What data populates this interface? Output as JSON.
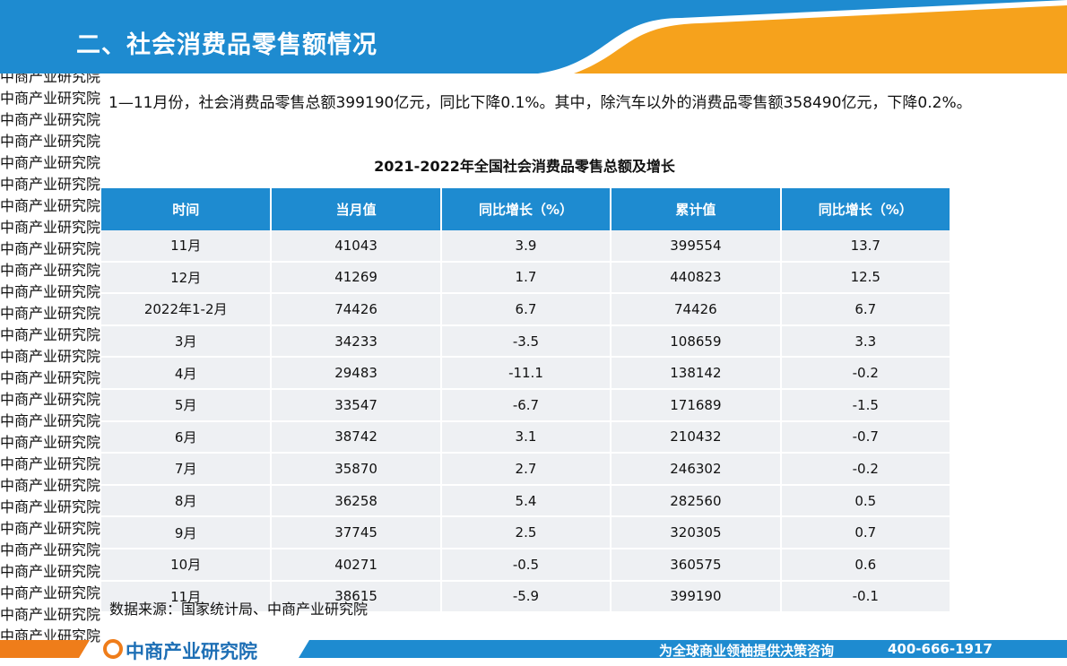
{
  "header": {
    "title": "二、社会消费品零售额情况"
  },
  "paragraph": "1—11月份，社会消费品零售总额399190亿元，同比下降0.1%。其中，除汽车以外的消费品零售额358490亿元，下降0.2%。",
  "table": {
    "title": "2021-2022年全国社会消费品零售总额及增长",
    "header": [
      "时间",
      "当月值",
      "同比增长（%）",
      "累计值",
      "同比增长（%）"
    ],
    "rows": [
      [
        "11月",
        41043,
        3.9,
        399554,
        13.7
      ],
      [
        "12月",
        41269,
        1.7,
        440823,
        12.5
      ],
      [
        "2022年1-2月",
        74426,
        6.7,
        74426,
        6.7
      ],
      [
        "3月",
        34233,
        -3.5,
        108659,
        3.3
      ],
      [
        "4月",
        29483,
        -11.1,
        138142,
        -0.2
      ],
      [
        "5月",
        33547,
        -6.7,
        171689,
        -1.5
      ],
      [
        "6月",
        38742,
        3.1,
        210432,
        -0.7
      ],
      [
        "7月",
        35870,
        2.7,
        246302,
        -0.2
      ],
      [
        "8月",
        36258,
        5.4,
        282560,
        0.5
      ],
      [
        "9月",
        37745,
        2.5,
        320305,
        0.7
      ],
      [
        "10月",
        40271,
        -0.5,
        360575,
        0.6
      ],
      [
        "11月",
        38615,
        -5.9,
        399190,
        -0.1
      ]
    ]
  },
  "source": "数据来源：国家统计局、中商产业研究院",
  "watermark": "中商产业研究院",
  "footer": {
    "logo": "中商产业研究院",
    "slogan": "为全球商业领袖提供决策咨询",
    "phone": "400-666-1917"
  }
}
